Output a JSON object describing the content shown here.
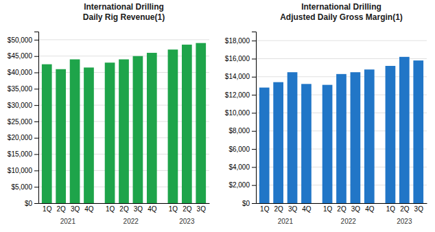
{
  "chart_data": [
    {
      "type": "bar",
      "title": "International Drilling\nDaily Rig Revenue(1)",
      "categories": [
        "1Q",
        "2Q",
        "3Q",
        "4Q",
        "1Q",
        "2Q",
        "3Q",
        "4Q",
        "1Q",
        "2Q",
        "3Q"
      ],
      "x_groups": [
        {
          "label": "2021",
          "categories": [
            "1Q",
            "2Q",
            "3Q",
            "4Q"
          ]
        },
        {
          "label": "2022",
          "categories": [
            "1Q",
            "2Q",
            "3Q",
            "4Q"
          ]
        },
        {
          "label": "2023",
          "categories": [
            "1Q",
            "2Q",
            "3Q"
          ]
        }
      ],
      "values": [
        42500,
        41000,
        44000,
        41500,
        43000,
        44000,
        45000,
        46000,
        47000,
        48500,
        49000
      ],
      "color": "#1ea44a",
      "ylim": [
        0,
        52500
      ],
      "yticks": [
        {
          "value": 0,
          "label": "$0"
        },
        {
          "value": 5000,
          "label": "$5,000"
        },
        {
          "value": 10000,
          "label": "$10,000"
        },
        {
          "value": 15000,
          "label": "$15,000"
        },
        {
          "value": 20000,
          "label": "$20,000"
        },
        {
          "value": 25000,
          "label": "$25,000"
        },
        {
          "value": 30000,
          "label": "$30,000"
        },
        {
          "value": 35000,
          "label": "$35,000"
        },
        {
          "value": 40000,
          "label": "$40,000"
        },
        {
          "value": 45000,
          "label": "$45,000"
        },
        {
          "value": 50000,
          "label": "$50,000"
        }
      ],
      "grid": true
    },
    {
      "type": "bar",
      "title": "International Drilling\nAdjusted Daily Gross Margin(1)",
      "categories": [
        "1Q",
        "2Q",
        "3Q",
        "4Q",
        "1Q",
        "2Q",
        "3Q",
        "4Q",
        "1Q",
        "2Q",
        "3Q"
      ],
      "x_groups": [
        {
          "label": "2021",
          "categories": [
            "1Q",
            "2Q",
            "3Q",
            "4Q"
          ]
        },
        {
          "label": "2022",
          "categories": [
            "1Q",
            "2Q",
            "3Q",
            "4Q"
          ]
        },
        {
          "label": "2023",
          "categories": [
            "1Q",
            "2Q",
            "3Q"
          ]
        }
      ],
      "values": [
        12800,
        13400,
        14500,
        13200,
        13100,
        14300,
        14500,
        14800,
        15200,
        16200,
        15800
      ],
      "color": "#2176c7",
      "ylim": [
        0,
        19000
      ],
      "yticks": [
        {
          "value": 0,
          "label": "$0"
        },
        {
          "value": 2000,
          "label": "$2,000"
        },
        {
          "value": 4000,
          "label": "$4,000"
        },
        {
          "value": 6000,
          "label": "$6,000"
        },
        {
          "value": 8000,
          "label": "$8,000"
        },
        {
          "value": 10000,
          "label": "$10,000"
        },
        {
          "value": 12000,
          "label": "$12,000"
        },
        {
          "value": 14000,
          "label": "$14,000"
        },
        {
          "value": 16000,
          "label": "$16,000"
        },
        {
          "value": 18000,
          "label": "$18,000"
        }
      ],
      "grid": true
    }
  ]
}
